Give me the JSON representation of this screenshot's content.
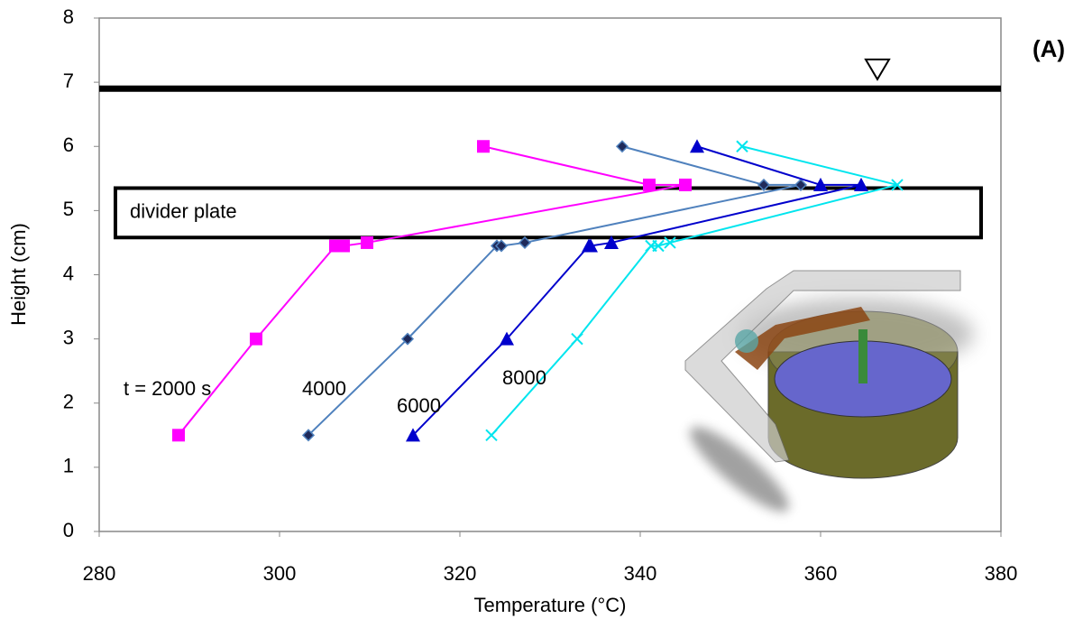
{
  "chart_data": {
    "type": "line",
    "x_label": "Temperature (°C)",
    "y_label": "Height (cm)",
    "panel_label": "(A)",
    "xlim": [
      280,
      380
    ],
    "xticks": [
      280,
      300,
      320,
      340,
      360,
      380
    ],
    "ylim": [
      0,
      8
    ],
    "yticks": [
      0,
      1,
      2,
      3,
      4,
      5,
      6,
      7,
      8
    ],
    "grid": false,
    "series": [
      {
        "name": "t = 2000 s",
        "color": "#ff00ff",
        "marker": "square",
        "x": [
          288.8,
          297.4,
          306.2,
          307.1,
          309.7,
          345,
          341,
          322.6
        ],
        "values": [
          1.5,
          3.0,
          4.45,
          4.45,
          4.5,
          5.4,
          5.4,
          6.0
        ]
      },
      {
        "name": "4000",
        "color": "#4f81bd",
        "marker": "diamond",
        "x": [
          303.2,
          314.2,
          324.1,
          324.6,
          327.2,
          357.8,
          353.7,
          338.0
        ],
        "values": [
          1.5,
          3.0,
          4.45,
          4.45,
          4.5,
          5.4,
          5.4,
          6.0
        ]
      },
      {
        "name": "6000",
        "color": "#0000cc",
        "marker": "triangle",
        "x": [
          314.8,
          325.2,
          334.3,
          334.5,
          336.8,
          364.5,
          360.0,
          346.3
        ],
        "values": [
          1.5,
          3.0,
          4.45,
          4.45,
          4.5,
          5.4,
          5.4,
          6.0
        ]
      },
      {
        "name": "8000",
        "color": "#00e5ee",
        "marker": "x",
        "x": [
          323.5,
          333.0,
          341.2,
          342.0,
          343.3,
          368.5,
          351.3
        ],
        "values": [
          1.5,
          3.0,
          4.45,
          4.45,
          4.5,
          5.4,
          6.0
        ]
      }
    ],
    "reference_line": {
      "y": 6.9
    },
    "surface_marker": {
      "x": 366.3,
      "y": 7.2
    },
    "box": {
      "label": "divider plate",
      "x": [
        281.8,
        377.8
      ],
      "y": [
        4.58,
        5.35
      ]
    }
  }
}
